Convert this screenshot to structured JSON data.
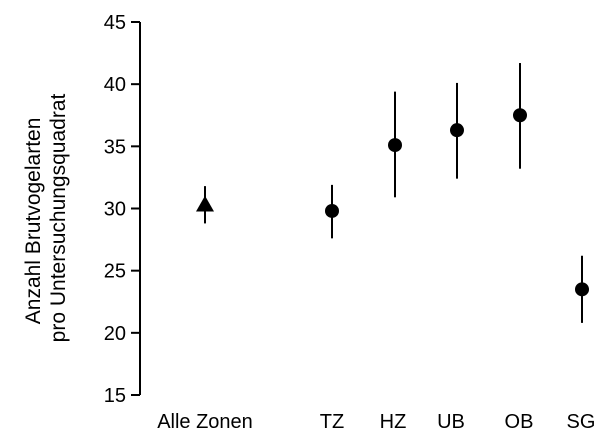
{
  "chart_data": {
    "type": "scatter",
    "title": "",
    "xlabel": "",
    "ylabel_lines": [
      "Anzahl Brutvogelarten",
      "pro Untersuchungsquadrat"
    ],
    "ylim": [
      15,
      45
    ],
    "yticks": [
      15,
      20,
      25,
      30,
      35,
      40,
      45
    ],
    "grid": false,
    "legend": "none",
    "categories": [
      "Alle Zonen",
      "TZ",
      "HZ",
      "UB",
      "OB",
      "SG"
    ],
    "points": [
      {
        "category": "Alle Zonen",
        "value": 30.3,
        "err_low": 28.8,
        "err_high": 31.8,
        "marker": "triangle"
      },
      {
        "category": "TZ",
        "value": 29.8,
        "err_low": 27.6,
        "err_high": 31.9,
        "marker": "circle"
      },
      {
        "category": "HZ",
        "value": 35.1,
        "err_low": 30.9,
        "err_high": 39.4,
        "marker": "circle"
      },
      {
        "category": "UB",
        "value": 36.3,
        "err_low": 32.4,
        "err_high": 40.1,
        "marker": "circle"
      },
      {
        "category": "OB",
        "value": 37.5,
        "err_low": 33.2,
        "err_high": 41.7,
        "marker": "circle"
      },
      {
        "category": "SG",
        "value": 23.5,
        "err_low": 20.8,
        "err_high": 26.2,
        "marker": "circle"
      }
    ],
    "colors": {
      "marker": "#000000",
      "axis": "#000000"
    }
  }
}
